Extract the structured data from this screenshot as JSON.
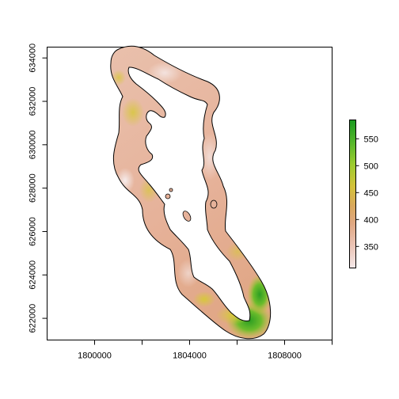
{
  "map": {
    "type": "raster-map",
    "x_axis": {
      "range": [
        1798000,
        1810000
      ],
      "ticks": [
        1800000,
        1802000,
        1804000,
        1806000,
        1808000,
        1810000
      ],
      "tick_labels": [
        "1800000",
        "1804000",
        "1808000"
      ],
      "labeled_ticks": [
        1800000,
        1804000,
        1808000
      ]
    },
    "y_axis": {
      "range": [
        621000,
        634500
      ],
      "ticks": [
        622000,
        624000,
        626000,
        628000,
        630000,
        632000,
        634000
      ],
      "tick_labels": [
        "622000",
        "624000",
        "626000",
        "628000",
        "630000",
        "632000",
        "634000"
      ]
    },
    "legend": {
      "position": "right",
      "range": [
        310,
        585
      ],
      "ticks": [
        350,
        400,
        450,
        500,
        550
      ],
      "tick_labels": [
        "350",
        "400",
        "450",
        "500",
        "550"
      ],
      "colors": [
        "#f5e9e9",
        "#ebc4b6",
        "#e0a882",
        "#d9a85c",
        "#d4c23a",
        "#9ccc2e",
        "#54b62a",
        "#1a9a20"
      ]
    },
    "colors": {
      "low": "#f2ded8",
      "mid": "#e8b89e",
      "yellow": "#dcc73c",
      "green": "#3aa82a",
      "lake": "#ffffff",
      "outline": "#000000"
    }
  }
}
